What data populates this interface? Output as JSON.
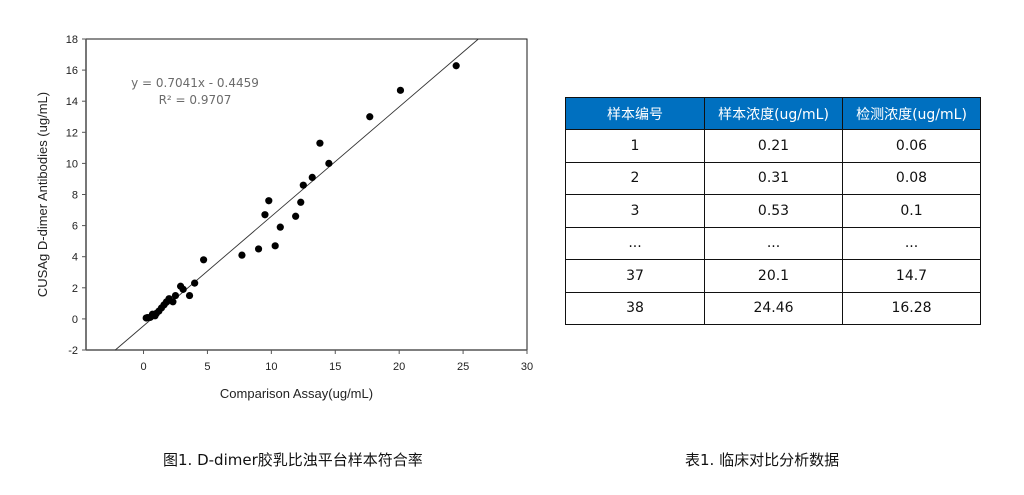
{
  "chart_data": {
    "type": "scatter",
    "title": "",
    "xlabel": "Comparison Assay(ug/mL)",
    "ylabel": "CUSAg D-dimer Antibodies (ug/mL)",
    "xlim": [
      -4.5,
      30
    ],
    "ylim": [
      -2,
      18
    ],
    "x_ticks": [
      0,
      5,
      10,
      15,
      20,
      25,
      30
    ],
    "y_ticks": [
      -2,
      0,
      2,
      4,
      6,
      8,
      10,
      12,
      14,
      16,
      18
    ],
    "grid": false,
    "legend": null,
    "annotations": [
      "y = 0.7041x - 0.4459",
      "R² = 0.9707"
    ],
    "trendline": {
      "slope": 0.7041,
      "intercept": -0.4459,
      "r2": 0.9707
    },
    "points": [
      {
        "x": 0.21,
        "y": 0.06
      },
      {
        "x": 0.31,
        "y": 0.08
      },
      {
        "x": 0.53,
        "y": 0.1
      },
      {
        "x": 0.7,
        "y": 0.3
      },
      {
        "x": 0.9,
        "y": 0.2
      },
      {
        "x": 1.0,
        "y": 0.35
      },
      {
        "x": 1.2,
        "y": 0.5
      },
      {
        "x": 1.4,
        "y": 0.7
      },
      {
        "x": 1.6,
        "y": 0.9
      },
      {
        "x": 1.8,
        "y": 1.1
      },
      {
        "x": 2.0,
        "y": 1.3
      },
      {
        "x": 2.3,
        "y": 1.1
      },
      {
        "x": 2.5,
        "y": 1.5
      },
      {
        "x": 2.9,
        "y": 2.1
      },
      {
        "x": 3.1,
        "y": 1.9
      },
      {
        "x": 3.6,
        "y": 1.5
      },
      {
        "x": 4.0,
        "y": 2.3
      },
      {
        "x": 4.7,
        "y": 3.8
      },
      {
        "x": 7.7,
        "y": 4.1
      },
      {
        "x": 9.0,
        "y": 4.5
      },
      {
        "x": 9.5,
        "y": 6.7
      },
      {
        "x": 9.8,
        "y": 7.6
      },
      {
        "x": 10.3,
        "y": 4.7
      },
      {
        "x": 10.7,
        "y": 5.9
      },
      {
        "x": 11.9,
        "y": 6.6
      },
      {
        "x": 12.3,
        "y": 7.5
      },
      {
        "x": 12.5,
        "y": 8.6
      },
      {
        "x": 13.2,
        "y": 9.1
      },
      {
        "x": 13.8,
        "y": 11.3
      },
      {
        "x": 14.5,
        "y": 10.0
      },
      {
        "x": 17.7,
        "y": 13.0
      },
      {
        "x": 20.1,
        "y": 14.7
      },
      {
        "x": 24.46,
        "y": 16.28
      }
    ]
  },
  "chart": {
    "xlabel": "Comparison Assay(ug/mL)",
    "ylabel": "CUSAg D-dimer Antibodies (ug/mL)",
    "equation": "y = 0.7041x - 0.4459",
    "r_squared": "R² = 0.9707"
  },
  "table": {
    "header_color": "#0070C0",
    "headers": [
      "样本编号",
      "样本浓度(ug/mL)",
      "检测浓度(ug/mL)"
    ],
    "rows": [
      [
        "1",
        "0.21",
        "0.06"
      ],
      [
        "2",
        "0.31",
        "0.08"
      ],
      [
        "3",
        "0.53",
        "0.1"
      ],
      [
        "...",
        "...",
        "..."
      ],
      [
        "37",
        "20.1",
        "14.7"
      ],
      [
        "38",
        "24.46",
        "16.28"
      ]
    ]
  },
  "captions": {
    "figure": "图1. D-dimer胶乳比浊平台样本符合率",
    "table": "表1. 临床对比分析数据"
  }
}
